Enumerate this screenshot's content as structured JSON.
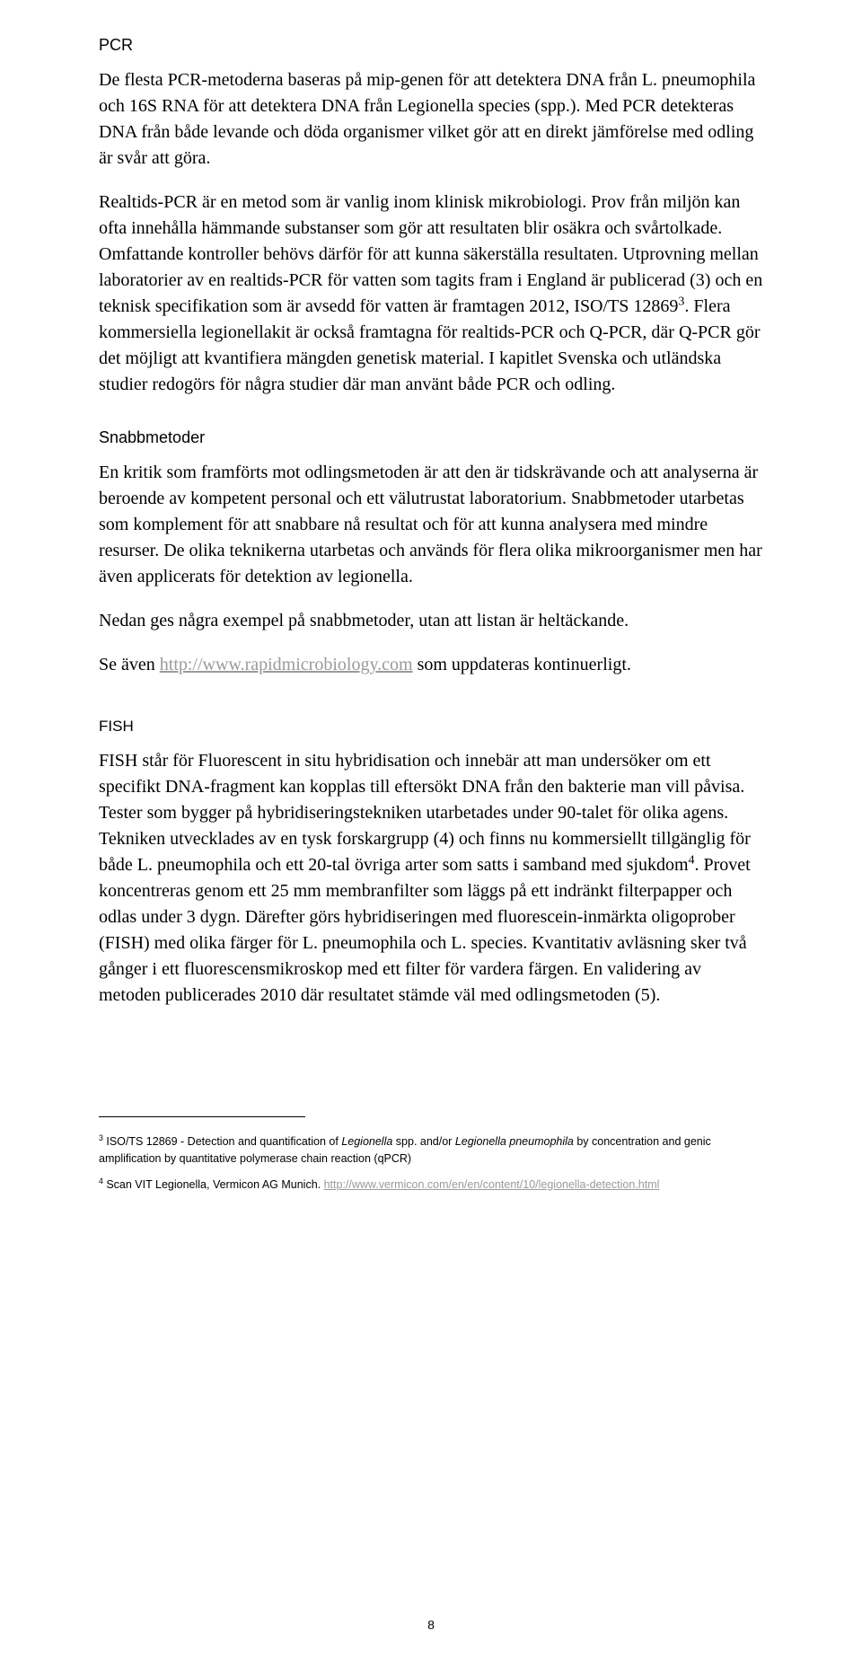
{
  "headings": {
    "h1": "PCR",
    "h2": "Snabbmetoder",
    "h3": "FISH"
  },
  "paragraphs": {
    "p1": "De flesta PCR-metoderna baseras på mip-genen för att detektera DNA från L. pneumophila och 16S RNA för att detektera DNA från Legionella species (spp.). Med PCR detekteras DNA från både levande och döda organismer vilket gör att en direkt jämförelse med odling är svår att göra.",
    "p2_a": "Realtids-PCR är en metod som är vanlig inom klinisk mikrobiologi. Prov från miljön kan ofta innehålla hämmande substanser som gör att resultaten blir osäkra och svårtolkade. Omfattande kontroller behövs därför för att kunna säkerställa resultaten. Utprovning mellan laboratorier av en realtids-PCR för vatten som tagits fram i England är publicerad (3) och en teknisk specifikation som är avsedd för vatten är framtagen 2012, ISO/TS 12869",
    "p2_b": ". Flera kommersiella legionellakit är också framtagna för realtids-PCR och Q-PCR, där Q-PCR gör det möjligt att kvantifiera mängden genetisk material. I kapitlet Svenska och utländska studier redogörs för några studier där man använt både PCR och odling.",
    "p3": "En kritik som framförts mot odlingsmetoden är att den är tidskrävande och att analyserna är beroende av kompetent personal och ett välutrustat laboratorium. Snabbmetoder utarbetas som komplement för att snabbare nå resultat och för att kunna analysera med mindre resurser. De olika teknikerna utarbetas och används för flera olika mikroorganismer men har även applicerats för detektion av legionella.",
    "p4": "Nedan ges några exempel på snabbmetoder, utan att listan är heltäckande.",
    "p5_a": "Se även ",
    "p5_link": "http://www.rapidmicrobiology.com",
    "p5_b": " som uppdateras kontinuerligt.",
    "p6_a": "FISH står för Fluorescent in situ hybridisation och innebär att man undersöker om ett specifikt DNA-fragment kan kopplas till eftersökt DNA från den bakterie man vill påvisa. Tester som bygger på hybridiseringstekniken utarbetades under 90-talet för olika agens. Tekniken utvecklades av en tysk forskargrupp (4) och finns nu kommersiellt tillgänglig för både L. pneumophila och ett 20-tal övriga arter som satts i samband med sjukdom",
    "p6_b": ". Provet koncentreras genom ett 25 mm membranfilter som läggs på ett indränkt filterpapper och odlas under 3 dygn. Därefter görs hybridiseringen med fluorescein-inmärkta oligoprober (FISH) med olika färger för L. pneumophila och L. species. Kvantitativ avläsning sker två gånger i ett fluorescensmikroskop med ett filter för vardera färgen. En validering av metoden publicerades 2010 där resultatet stämde väl med odlingsmetoden (5)."
  },
  "superscripts": {
    "s3": "3",
    "s4": "4"
  },
  "footnotes": {
    "fn3_num": "3",
    "fn3_a": " ISO/TS 12869 - Detection and quantification of ",
    "fn3_it1": "Legionella",
    "fn3_b": " spp. and/or ",
    "fn3_it2": "Legionella pneumophila",
    "fn3_c": " by concentration and genic amplification by quantitative polymerase chain reaction (qPCR)",
    "fn4_num": "4",
    "fn4_a": " Scan VIT Legionella, Vermicon AG Munich. ",
    "fn4_link": "http://www.vermicon.com/en/en/content/10/legionella-detection.html"
  },
  "pageNumber": "8",
  "colors": {
    "text": "#000000",
    "link_blue": "#0066cc",
    "link_gray": "#9a9a9a",
    "background": "#ffffff"
  },
  "typography": {
    "body_family": "Times New Roman",
    "body_size_pt": 15,
    "heading_family": "Verdana",
    "heading_size_pt": 13,
    "footnote_family": "Verdana",
    "footnote_size_pt": 9
  }
}
